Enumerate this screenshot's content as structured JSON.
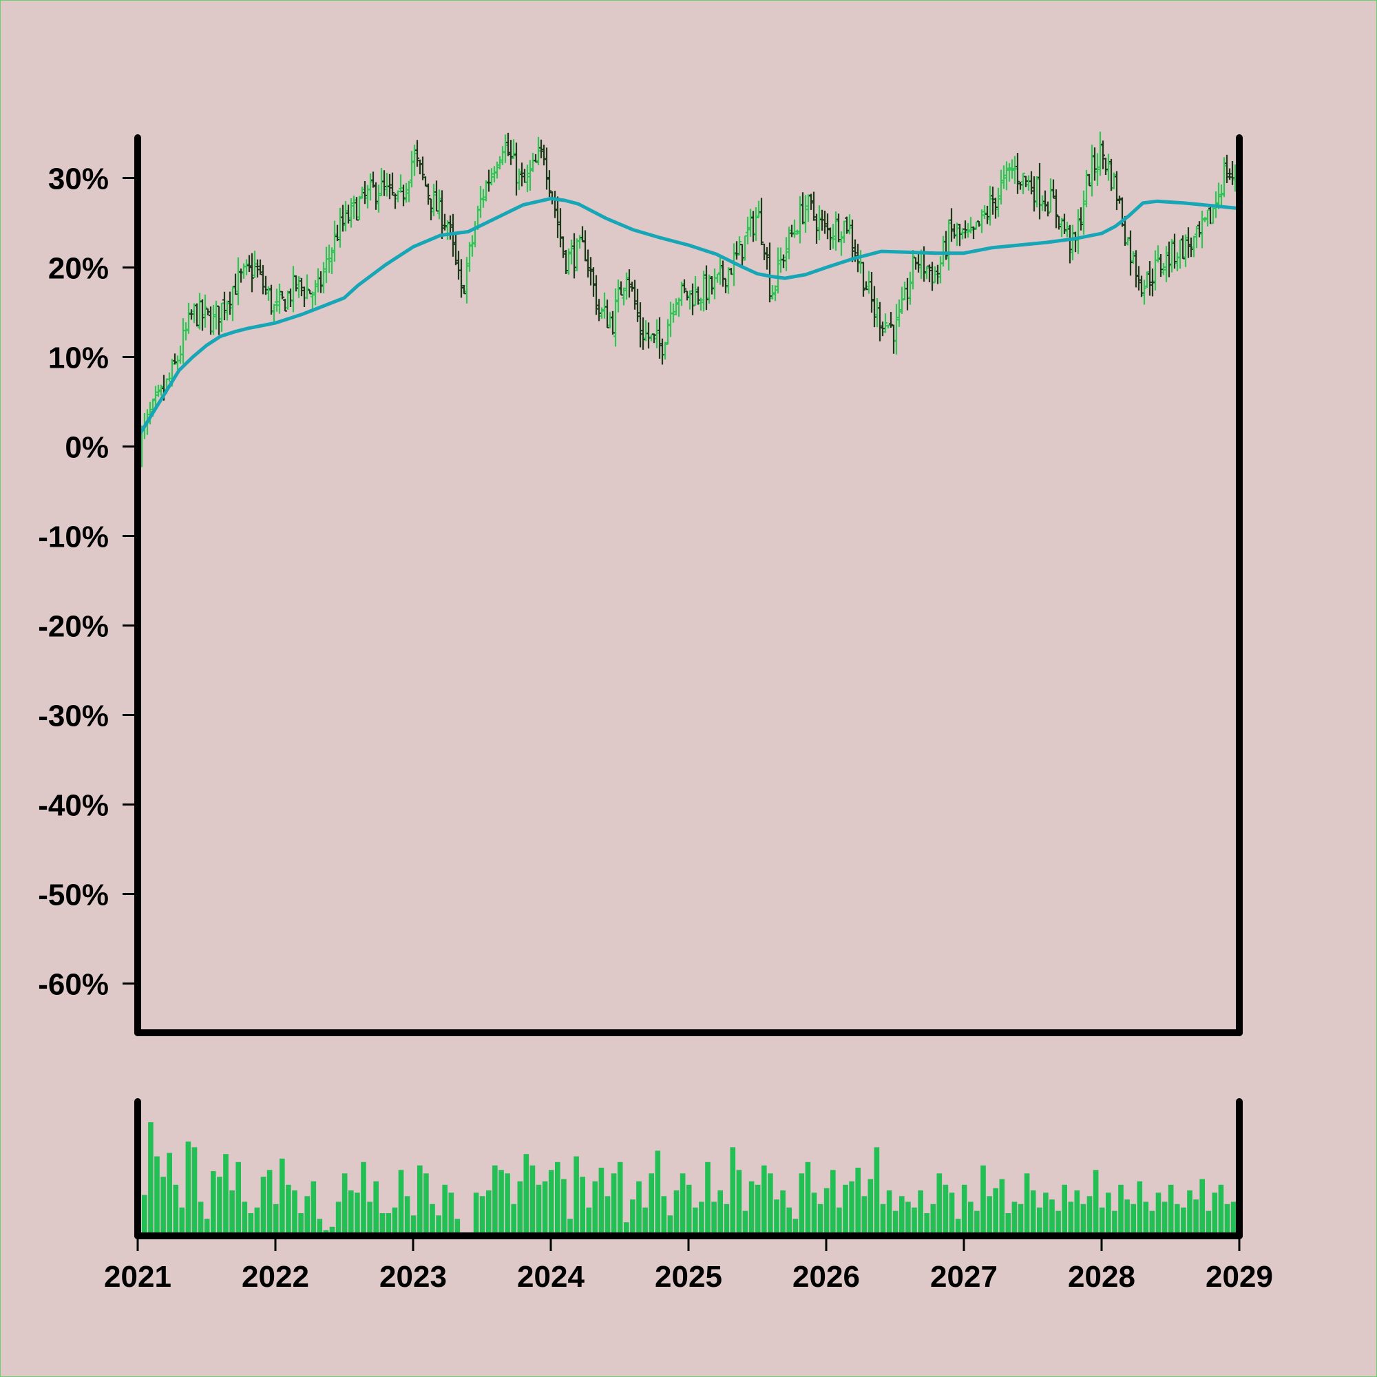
{
  "chart_data": [
    {
      "type": "ohlc",
      "panel": "price",
      "title": "",
      "xlabel": "",
      "ylabel": "",
      "x_ticks": [
        "2021",
        "2022",
        "2023",
        "2024",
        "2025",
        "2026",
        "2027",
        "2028",
        "2029"
      ],
      "x_range": [
        "2021",
        "2029"
      ],
      "y_ticks": [
        "30%",
        "20%",
        "10%",
        "0%",
        "-10%",
        "-20%",
        "-30%",
        "-40%",
        "-50%",
        "-60%"
      ],
      "y_tick_values": [
        30,
        20,
        10,
        0,
        -10,
        -20,
        -30,
        -40,
        -50,
        -60
      ],
      "ylim": [
        -65.5,
        34.5
      ],
      "grid": false,
      "colors": {
        "up": "#2cc653",
        "down": "#1a3a1a",
        "moving_average": "#16a6b6",
        "background": "#dfc8c8",
        "axes": "#000000"
      },
      "close_path": {
        "x": [
          2021.0,
          2021.08,
          2021.25,
          2021.4,
          2021.55,
          2021.7,
          2021.85,
          2022.0,
          2022.15,
          2022.3,
          2022.45,
          2022.6,
          2022.75,
          2022.9,
          2023.0,
          2023.15,
          2023.25,
          2023.35,
          2023.5,
          2023.65,
          2023.8,
          2023.95,
          2024.1,
          2024.25,
          2024.35,
          2024.45,
          2024.55,
          2024.65,
          2024.8,
          2024.9,
          2025.05,
          2025.2,
          2025.35,
          2025.5,
          2025.55,
          2025.6,
          2025.7,
          2025.85,
          2026.0,
          2026.15,
          2026.25,
          2026.35,
          2026.5,
          2026.55,
          2026.65,
          2026.8,
          2026.9,
          2027.05,
          2027.2,
          2027.35,
          2027.5,
          2027.65,
          2027.8,
          2027.9,
          2028.0,
          2028.1,
          2028.2,
          2028.3,
          2028.4,
          2028.55,
          2028.7,
          2028.8,
          2028.9,
          2029.0
        ],
        "y": [
          0.0,
          3.0,
          8.0,
          15.0,
          14.0,
          18.0,
          20.0,
          15.0,
          18.0,
          17.0,
          24.0,
          27.0,
          29.0,
          27.0,
          32.5,
          27.0,
          25.0,
          17.0,
          28.0,
          34.0,
          29.0,
          33.0,
          21.0,
          22.0,
          15.0,
          14.0,
          20.0,
          13.0,
          11.0,
          17.0,
          17.0,
          18.0,
          21.0,
          26.0,
          23.0,
          17.0,
          22.0,
          27.0,
          24.0,
          25.0,
          20.0,
          15.0,
          13.0,
          15.0,
          21.0,
          19.0,
          24.0,
          23.0,
          27.0,
          31.0,
          29.0,
          27.0,
          22.0,
          30.0,
          33.0,
          29.0,
          22.0,
          18.0,
          20.0,
          22.0,
          23.0,
          26.0,
          31.0,
          29.0
        ]
      },
      "moving_average": {
        "x": [
          2021.0,
          2021.1,
          2021.2,
          2021.3,
          2021.4,
          2021.5,
          2021.6,
          2021.7,
          2021.8,
          2021.9,
          2022.0,
          2022.2,
          2022.4,
          2022.5,
          2022.6,
          2022.8,
          2023.0,
          2023.2,
          2023.4,
          2023.6,
          2023.8,
          2024.0,
          2024.1,
          2024.2,
          2024.4,
          2024.6,
          2024.8,
          2025.0,
          2025.2,
          2025.4,
          2025.5,
          2025.6,
          2025.7,
          2025.85,
          2026.0,
          2026.2,
          2026.4,
          2026.6,
          2026.8,
          2027.0,
          2027.2,
          2027.4,
          2027.6,
          2027.8,
          2028.0,
          2028.1,
          2028.2,
          2028.3,
          2028.4,
          2028.6,
          2028.8,
          2029.0
        ],
        "y": [
          1.0,
          3.5,
          6.0,
          8.5,
          10.0,
          11.3,
          12.3,
          12.8,
          13.2,
          13.5,
          13.8,
          14.8,
          16.0,
          16.6,
          18.0,
          20.3,
          22.3,
          23.6,
          24.0,
          25.5,
          27.0,
          27.7,
          27.5,
          27.1,
          25.5,
          24.2,
          23.3,
          22.5,
          21.5,
          20.0,
          19.3,
          19.0,
          18.8,
          19.2,
          20.0,
          21.0,
          21.8,
          21.7,
          21.6,
          21.6,
          22.2,
          22.5,
          22.8,
          23.2,
          23.8,
          24.6,
          25.8,
          27.2,
          27.4,
          27.2,
          26.9,
          26.6
        ]
      }
    },
    {
      "type": "bar",
      "panel": "volume",
      "title": "",
      "xlabel": "",
      "ylabel": "",
      "color": "#22bf55",
      "x_range": [
        "2021",
        "2029"
      ],
      "ylim": [
        0,
        100
      ],
      "relative_values": [
        36,
        100,
        70,
        52,
        73,
        45,
        25,
        83,
        78,
        30,
        15,
        57,
        52,
        72,
        40,
        65,
        30,
        20,
        25,
        52,
        58,
        28,
        68,
        45,
        40,
        20,
        35,
        48,
        15,
        5,
        8,
        30,
        55,
        40,
        38,
        65,
        30,
        48,
        20,
        20,
        25,
        58,
        35,
        18,
        62,
        55,
        28,
        18,
        45,
        38,
        15,
        2,
        0,
        38,
        35,
        40,
        62,
        58,
        55,
        28,
        48,
        72,
        62,
        45,
        48,
        58,
        65,
        50,
        15,
        70,
        52,
        25,
        48,
        60,
        35,
        55,
        65,
        12,
        32,
        48,
        25,
        55,
        75,
        35,
        18,
        40,
        55,
        45,
        25,
        30,
        65,
        30,
        40,
        28,
        78,
        58,
        22,
        48,
        45,
        62,
        55,
        32,
        40,
        25,
        15,
        55,
        65,
        38,
        28,
        42,
        58,
        25,
        45,
        48,
        60,
        35,
        50,
        78,
        28,
        40,
        22,
        35,
        30,
        25,
        40,
        20,
        28,
        55,
        45,
        38,
        15,
        45,
        30,
        22,
        62,
        35,
        42,
        50,
        20,
        30,
        28,
        55,
        40,
        25,
        38,
        32,
        22,
        45,
        30,
        40,
        28,
        35,
        58,
        25,
        38,
        22,
        45,
        32,
        28,
        48,
        30,
        22,
        38,
        30,
        45,
        28,
        25,
        40,
        32,
        50,
        22,
        38,
        45,
        28,
        30,
        42
      ]
    }
  ]
}
